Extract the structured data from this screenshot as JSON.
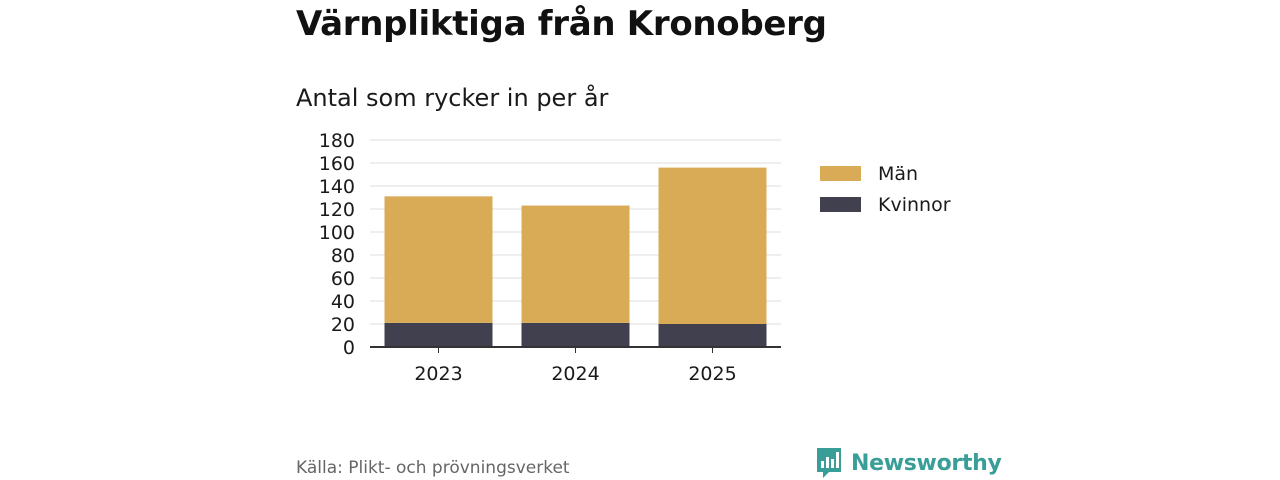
{
  "title": "Värnpliktiga från Kronoberg",
  "subtitle": "Antal som rycker in per år",
  "source": "Källa: Plikt- och prövningsverket",
  "brand": {
    "name": "Newsworthy",
    "color": "#3a9e98"
  },
  "legend": [
    {
      "label": "Män",
      "color": "#d9ab57"
    },
    {
      "label": "Kvinnor",
      "color": "#41404f"
    }
  ],
  "chart_data": {
    "type": "bar",
    "stacked": true,
    "categories": [
      "2023",
      "2024",
      "2025"
    ],
    "series": [
      {
        "name": "Kvinnor",
        "color": "#41404f",
        "values": [
          21,
          21,
          20
        ]
      },
      {
        "name": "Män",
        "color": "#d9ab57",
        "values": [
          110,
          102,
          136
        ]
      }
    ],
    "ylim": [
      0,
      180
    ],
    "yticks": [
      0,
      20,
      40,
      60,
      80,
      100,
      120,
      140,
      160,
      180
    ],
    "grid": true,
    "legend_position": "right",
    "xlabel": "",
    "ylabel": ""
  }
}
